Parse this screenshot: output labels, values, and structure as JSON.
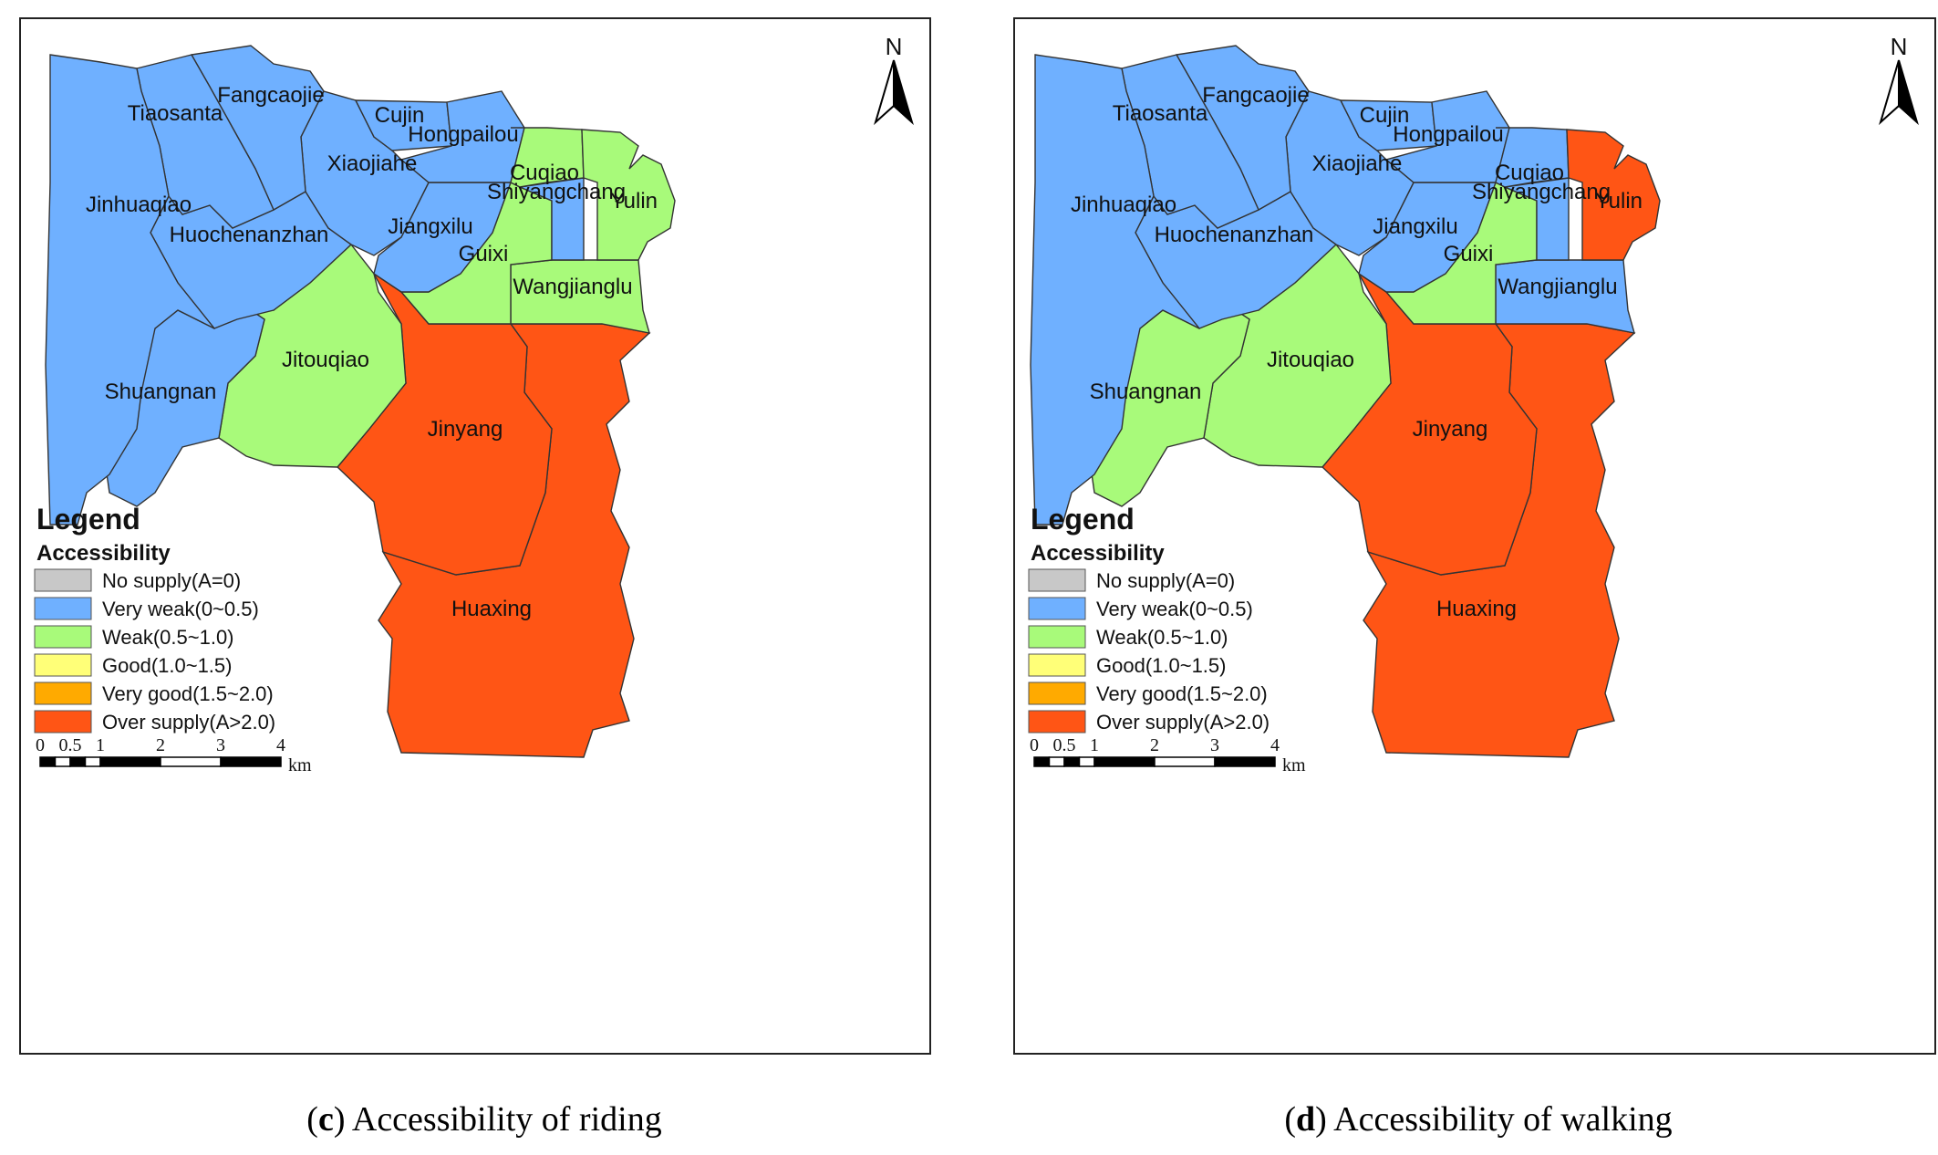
{
  "colors": {
    "no_supply": "#c8c8c8",
    "very_weak": "#6fb0ff",
    "weak": "#a8fa7a",
    "good": "#ffff78",
    "very_good": "#ffaa00",
    "over_supply": "#ff5515"
  },
  "legend": {
    "title": "Legend",
    "subtitle": "Accessibility",
    "items": [
      {
        "key": "no_supply",
        "label": "No supply(A=0)"
      },
      {
        "key": "very_weak",
        "label": "Very weak(0~0.5)"
      },
      {
        "key": "weak",
        "label": "Weak(0.5~1.0)"
      },
      {
        "key": "good",
        "label": "Good(1.0~1.5)"
      },
      {
        "key": "very_good",
        "label": "Very good(1.5~2.0)"
      },
      {
        "key": "over_supply",
        "label": "Over supply(A>2.0)"
      }
    ]
  },
  "scale_bar": {
    "ticks": [
      "0",
      "0.5",
      "1",
      "2",
      "3",
      "4"
    ],
    "unit": "km"
  },
  "north_label": "N",
  "regions": {
    "jinhuaqiao": "Jinhuaqiao",
    "tiaosanta": "Tiaosanta",
    "fangcaojie": "Fangcaojie",
    "cujin": "Cujin",
    "hongpailou": "Hongpailou",
    "xiaojiahe": "Xiaojiahe",
    "cuqiao": "Cuqiao",
    "shiyangchang": "Shiyangchang",
    "yulin": "Yulin",
    "jiangxilu": "Jiangxilu",
    "huochenanzhan": "Huochenanzhan",
    "guixi": "Guixi",
    "wangjianglu": "Wangjianglu",
    "jitouqiao": "Jitouqiao",
    "shuangnan": "Shuangnan",
    "jinyang": "Jinyang",
    "huaxing": "Huaxing"
  },
  "panels": [
    {
      "caption_letter": "c",
      "caption_text": " Accessibility of riding",
      "classes": {
        "jinhuaqiao": "very_weak",
        "tiaosanta": "very_weak",
        "fangcaojie": "very_weak",
        "cujin": "very_weak",
        "hongpailou": "very_weak",
        "xiaojiahe": "very_weak",
        "cuqiao": "weak",
        "shiyangchang": "very_weak",
        "yulin": "weak",
        "jiangxilu": "very_weak",
        "huochenanzhan": "very_weak",
        "guixi": "weak",
        "wangjianglu": "weak",
        "jitouqiao": "weak",
        "shuangnan": "very_weak",
        "jinyang": "over_supply",
        "huaxing": "over_supply"
      }
    },
    {
      "caption_letter": "d",
      "caption_text": " Accessibility of walking",
      "classes": {
        "jinhuaqiao": "very_weak",
        "tiaosanta": "very_weak",
        "fangcaojie": "very_weak",
        "cujin": "very_weak",
        "hongpailou": "very_weak",
        "xiaojiahe": "very_weak",
        "cuqiao": "very_weak",
        "shiyangchang": "very_weak",
        "yulin": "over_supply",
        "jiangxilu": "very_weak",
        "huochenanzhan": "very_weak",
        "guixi": "weak",
        "wangjianglu": "very_weak",
        "jitouqiao": "weak",
        "shuangnan": "weak",
        "jinyang": "over_supply",
        "huaxing": "over_supply"
      }
    }
  ]
}
